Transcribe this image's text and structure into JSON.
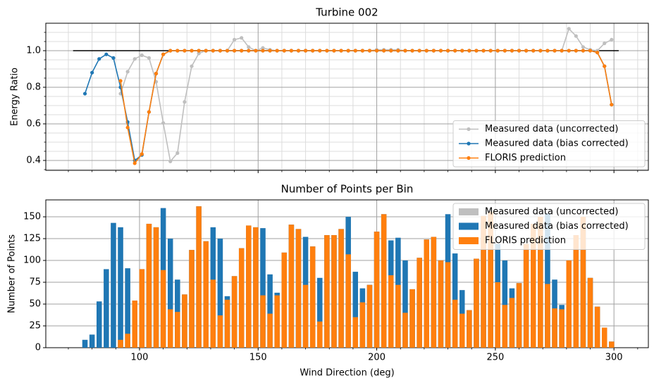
{
  "chart_data": [
    {
      "type": "line",
      "title": "Turbine 002",
      "ylabel": "Energy Ratio",
      "x": [
        77,
        80,
        83,
        86,
        89,
        92,
        95,
        98,
        101,
        104,
        107,
        110,
        113,
        116,
        119,
        122,
        125,
        128,
        131,
        134,
        137,
        140,
        143,
        146,
        149,
        152,
        155,
        158,
        161,
        164,
        167,
        170,
        173,
        176,
        179,
        182,
        185,
        188,
        191,
        194,
        197,
        200,
        203,
        206,
        209,
        212,
        215,
        218,
        221,
        224,
        227,
        230,
        233,
        236,
        239,
        242,
        245,
        248,
        251,
        254,
        257,
        260,
        263,
        266,
        269,
        272,
        275,
        278,
        281,
        284,
        287,
        290,
        293,
        296,
        299
      ],
      "series": [
        {
          "name": "Measured data (uncorrected)",
          "color": "#bfbfbf",
          "values": [
            null,
            null,
            null,
            null,
            null,
            0.765,
            0.885,
            0.955,
            0.975,
            0.96,
            0.83,
            0.605,
            0.395,
            0.44,
            0.72,
            0.915,
            0.985,
            1,
            1,
            1,
            1,
            1.06,
            1.07,
            1.02,
            1,
            1.015,
            1.005,
            1,
            1,
            1,
            1,
            1,
            1,
            1,
            1,
            1,
            1,
            1,
            1,
            1,
            1,
            1.005,
            1.005,
            1.005,
            1.005,
            1,
            1,
            1,
            1,
            1,
            1,
            1,
            1,
            1,
            1,
            1,
            1,
            1,
            1,
            1,
            1,
            1,
            1,
            1,
            1,
            1,
            1,
            1,
            1.12,
            1.08,
            1.02,
            1.005,
            1,
            1.04,
            1.06
          ]
        },
        {
          "name": "Measured data (bias corrected)",
          "color": "#1f77b4",
          "values": [
            0.765,
            0.88,
            0.955,
            0.98,
            0.96,
            0.8,
            0.61,
            0.4,
            0.43,
            0.665,
            0.875,
            0.98,
            1,
            1,
            1,
            1,
            1,
            1,
            1,
            1,
            1,
            1,
            1,
            1,
            1,
            1,
            1,
            1,
            1,
            1,
            1,
            1,
            1,
            1,
            1,
            1,
            1,
            1,
            1,
            1,
            1,
            1,
            1,
            1,
            1,
            1,
            1,
            1,
            1,
            1,
            1,
            1,
            1,
            1,
            1,
            1,
            1,
            1,
            1,
            1,
            1,
            1,
            1,
            1,
            1,
            1,
            1,
            1,
            1,
            1,
            1,
            1,
            0.99,
            0.915,
            0.705
          ]
        },
        {
          "name": "FLORIS prediction",
          "color": "#ff7f0e",
          "values": [
            null,
            null,
            null,
            null,
            null,
            0.835,
            0.58,
            0.385,
            0.435,
            0.665,
            0.875,
            0.98,
            1,
            1,
            1,
            1,
            1,
            1,
            1,
            1,
            1,
            1,
            1,
            1,
            1,
            1,
            1,
            1,
            1,
            1,
            1,
            1,
            1,
            1,
            1,
            1,
            1,
            1,
            1,
            1,
            1,
            1,
            1,
            1,
            1,
            1,
            1,
            1,
            1,
            1,
            1,
            1,
            1,
            1,
            1,
            1,
            1,
            1,
            1,
            1,
            1,
            1,
            1,
            1,
            1,
            1,
            1,
            1,
            1,
            1,
            1,
            1,
            0.99,
            0.915,
            0.705
          ]
        }
      ],
      "hline": {
        "x": [
          72,
          302
        ],
        "y": 1,
        "color": "#000000"
      },
      "xlim": [
        60.5,
        314.5
      ],
      "xticks": [
        100,
        150,
        200,
        250,
        300
      ],
      "xminorticks": [
        70,
        80,
        90,
        110,
        120,
        130,
        140,
        160,
        170,
        180,
        190,
        210,
        220,
        230,
        240,
        260,
        270,
        280,
        290,
        310
      ],
      "ylim": [
        0.346,
        1.15
      ],
      "yticks": [
        0.4,
        0.6,
        0.8,
        {
          "value": 1,
          "label": "1.0"
        }
      ],
      "yminorticks": [
        0.35,
        0.45,
        0.5,
        0.55,
        0.65,
        0.7,
        0.75,
        0.85,
        0.9,
        0.95,
        1.05,
        1.1
      ],
      "grid": true,
      "legend": "lower right"
    },
    {
      "type": "bar",
      "title": "Number of Points per Bin",
      "ylabel": "Number of Points",
      "xlabel": "Wind Direction (deg)",
      "x": [
        77,
        80,
        83,
        86,
        89,
        92,
        95,
        98,
        101,
        104,
        107,
        110,
        113,
        116,
        119,
        122,
        125,
        128,
        131,
        134,
        137,
        140,
        143,
        146,
        149,
        152,
        155,
        158,
        161,
        164,
        167,
        170,
        173,
        176,
        179,
        182,
        185,
        188,
        191,
        194,
        197,
        200,
        203,
        206,
        209,
        212,
        215,
        218,
        221,
        224,
        227,
        230,
        233,
        236,
        239,
        242,
        245,
        248,
        251,
        254,
        257,
        260,
        263,
        266,
        269,
        272,
        275,
        278,
        281,
        284,
        287,
        290,
        293,
        296,
        299
      ],
      "series": [
        {
          "name": "Measured data (uncorrected)",
          "color": "#bfbfbf",
          "values": [
            9,
            15,
            53,
            90,
            143,
            138,
            91,
            54,
            90,
            142,
            138,
            160,
            125,
            78,
            61,
            112,
            162,
            122,
            138,
            125,
            59,
            82,
            114,
            140,
            138,
            137,
            84,
            63,
            109,
            141,
            136,
            127,
            116,
            80,
            129,
            129,
            136,
            150,
            87,
            68,
            72,
            133,
            153,
            123,
            126,
            100,
            67,
            103,
            124,
            127,
            100,
            153,
            108,
            66,
            43,
            102,
            151,
            156,
            119,
            100,
            68,
            74,
            119,
            142,
            150,
            154,
            78,
            49,
            100,
            129,
            150,
            80,
            47,
            23,
            7
          ]
        },
        {
          "name": "Measured data (bias corrected)",
          "color": "#1f77b4",
          "values": [
            9,
            15,
            53,
            90,
            143,
            138,
            91,
            54,
            90,
            142,
            138,
            160,
            125,
            78,
            61,
            112,
            162,
            122,
            138,
            125,
            59,
            82,
            114,
            140,
            138,
            137,
            84,
            63,
            109,
            141,
            136,
            127,
            116,
            80,
            129,
            129,
            136,
            150,
            87,
            68,
            72,
            133,
            153,
            123,
            126,
            100,
            67,
            103,
            124,
            127,
            100,
            153,
            108,
            66,
            43,
            102,
            151,
            156,
            119,
            100,
            68,
            74,
            119,
            142,
            150,
            154,
            78,
            49,
            100,
            129,
            150,
            80,
            47,
            23,
            7
          ]
        },
        {
          "name": "FLORIS prediction",
          "color": "#ff7f0e",
          "values": [
            0,
            0,
            0,
            0,
            0,
            9,
            16,
            54,
            90,
            142,
            138,
            89,
            44,
            41,
            61,
            112,
            162,
            122,
            78,
            37,
            55,
            82,
            114,
            140,
            138,
            60,
            39,
            60,
            109,
            141,
            136,
            72,
            116,
            30,
            129,
            129,
            136,
            107,
            35,
            52,
            72,
            133,
            153,
            83,
            72,
            40,
            67,
            103,
            124,
            127,
            100,
            98,
            55,
            39,
            43,
            102,
            151,
            156,
            75,
            49,
            57,
            74,
            119,
            142,
            150,
            73,
            45,
            44,
            100,
            129,
            150,
            80,
            47,
            23,
            7
          ]
        }
      ],
      "xlim": [
        60.5,
        314.5
      ],
      "xticks": [
        100,
        150,
        200,
        250,
        300
      ],
      "xminorticks": [
        70,
        80,
        90,
        110,
        120,
        130,
        140,
        160,
        170,
        180,
        190,
        210,
        220,
        230,
        240,
        260,
        270,
        280,
        290,
        310
      ],
      "ylim": [
        0,
        169.4
      ],
      "yticks": [
        0,
        25,
        50,
        75,
        100,
        125,
        150
      ],
      "grid": true,
      "legend": "upper right"
    }
  ]
}
